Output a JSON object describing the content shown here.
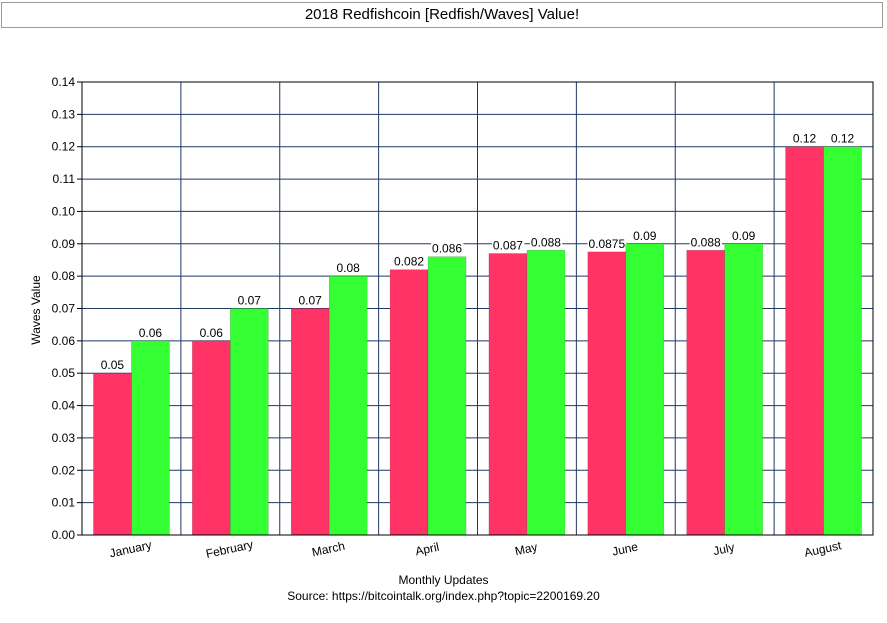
{
  "window": {
    "title": "2018 Redfishcoin [Redfish/Waves] Value!"
  },
  "chart_data": {
    "type": "bar",
    "title": "2018 Redfishcoin [Redfish/Waves] Value!",
    "xlabel": "Monthly Updates",
    "ylabel": "Waves Value",
    "source": "Source: https://bitcointalk.org/index.php?topic=2200169.20",
    "categories": [
      "January",
      "February",
      "March",
      "April",
      "May",
      "June",
      "July",
      "August"
    ],
    "series": [
      {
        "color": "#ff3366",
        "values": [
          0.05,
          0.06,
          0.07,
          0.082,
          0.087,
          0.0875,
          0.088,
          0.12
        ]
      },
      {
        "color": "#33ff33",
        "values": [
          0.06,
          0.07,
          0.08,
          0.086,
          0.088,
          0.09,
          0.09,
          0.12
        ]
      }
    ],
    "ylim": [
      0,
      0.14
    ],
    "yticks": [
      "0.00",
      "0.01",
      "0.02",
      "0.03",
      "0.04",
      "0.05",
      "0.06",
      "0.07",
      "0.08",
      "0.09",
      "0.10",
      "0.11",
      "0.12",
      "0.13",
      "0.14"
    ],
    "grid": true,
    "grid_color": "#1f3864"
  }
}
